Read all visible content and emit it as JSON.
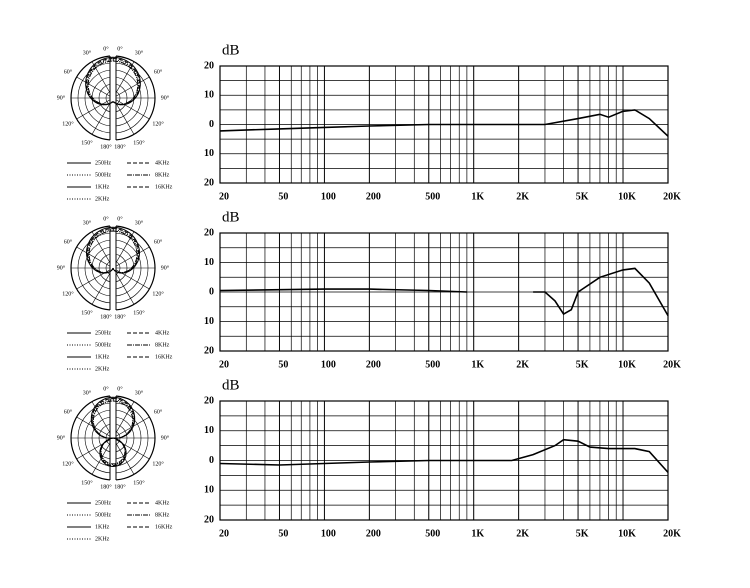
{
  "chart_data": [
    {
      "type": "line",
      "y_label": "dB",
      "xscale": "log",
      "grid": true,
      "minor_grid": true,
      "color": "#000000",
      "xlim": [
        20,
        20000
      ],
      "ylim": [
        -20,
        20
      ],
      "xticks": [
        20,
        50,
        100,
        200,
        500,
        {
          "value": 1000,
          "label": "1K"
        },
        {
          "value": 2000,
          "label": "2K"
        },
        {
          "value": 5000,
          "label": "5K"
        },
        {
          "value": 10000,
          "label": "10K"
        },
        {
          "value": 20000,
          "label": "20K"
        }
      ],
      "yticks": [
        {
          "value": -20,
          "label": "20"
        },
        {
          "value": -10,
          "label": "10"
        },
        0,
        10,
        20
      ],
      "x": [
        20,
        50,
        100,
        200,
        500,
        1000,
        2000,
        3000,
        5000,
        7000,
        8000,
        10000,
        12000,
        15000,
        20000
      ],
      "values": [
        -2.2,
        -1.5,
        -1,
        -0.5,
        0,
        0,
        0,
        0,
        2,
        3.5,
        2.5,
        4.5,
        5,
        2,
        -4
      ]
    },
    {
      "type": "line",
      "y_label": "dB",
      "xscale": "log",
      "grid": true,
      "minor_grid": true,
      "color": "#000000",
      "xlim": [
        20,
        20000
      ],
      "ylim": [
        -20,
        20
      ],
      "xticks": [
        20,
        50,
        100,
        200,
        500,
        {
          "value": 1000,
          "label": "1K"
        },
        {
          "value": 2000,
          "label": "2K"
        },
        {
          "value": 5000,
          "label": "5K"
        },
        {
          "value": 10000,
          "label": "10K"
        },
        {
          "value": 20000,
          "label": "20K"
        }
      ],
      "yticks": [
        {
          "value": -20,
          "label": "20"
        },
        {
          "value": -10,
          "label": "10"
        },
        0,
        10,
        20
      ],
      "x": [
        20,
        100,
        200,
        500,
        900,
        1500,
        2500,
        3000,
        3500,
        4000,
        4500,
        5000,
        7000,
        10000,
        12000,
        15000,
        20000
      ],
      "values": [
        0.5,
        1,
        1,
        0.5,
        0,
        null,
        0,
        0,
        -3,
        -7.5,
        -6,
        0,
        5,
        7.5,
        8,
        3,
        -8
      ]
    },
    {
      "type": "line",
      "y_label": "dB",
      "xscale": "log",
      "grid": true,
      "minor_grid": true,
      "color": "#000000",
      "xlim": [
        20,
        20000
      ],
      "ylim": [
        -20,
        20
      ],
      "xticks": [
        20,
        50,
        100,
        200,
        500,
        {
          "value": 1000,
          "label": "1K"
        },
        {
          "value": 2000,
          "label": "2K"
        },
        {
          "value": 5000,
          "label": "5K"
        },
        {
          "value": 10000,
          "label": "10K"
        },
        {
          "value": 20000,
          "label": "20K"
        }
      ],
      "yticks": [
        {
          "value": -20,
          "label": "20"
        },
        {
          "value": -10,
          "label": "10"
        },
        0,
        10,
        20
      ],
      "x": [
        20,
        50,
        100,
        200,
        500,
        1000,
        1800,
        2500,
        3500,
        4000,
        5000,
        6000,
        8000,
        12000,
        15000,
        20000
      ],
      "values": [
        -1,
        -1.5,
        -1,
        -0.5,
        0,
        0,
        0,
        2,
        5,
        7,
        6.5,
        4.5,
        4,
        4,
        3,
        -4
      ]
    }
  ],
  "polar": [
    {
      "angles": [
        "0°",
        "30°",
        "60°",
        "90°",
        "120°",
        "150°",
        "180°"
      ],
      "legend": [
        "250Hz",
        "4KHz",
        "500Hz",
        "8KHz",
        "1KHz",
        "16KHz",
        "2KHz"
      ]
    },
    {
      "angles": [
        "0°",
        "30°",
        "60°",
        "90°",
        "120°",
        "150°",
        "180°"
      ],
      "legend": [
        "250Hz",
        "4KHz",
        "500Hz",
        "8KHz",
        "1KHz",
        "16KHz",
        "2KHz"
      ]
    },
    {
      "angles": [
        "0°",
        "30°",
        "60°",
        "90°",
        "120°",
        "150°",
        "180°"
      ],
      "legend": [
        "250Hz",
        "4KHz",
        "500Hz",
        "8KHz",
        "1KHz",
        "16KHz",
        "2KHz"
      ]
    }
  ]
}
